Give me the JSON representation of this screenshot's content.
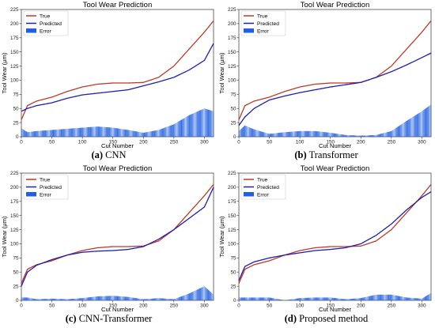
{
  "figure": {
    "panels": [
      {
        "letter": "(a)",
        "label": "CNN"
      },
      {
        "letter": "(b)",
        "label": "Transformer"
      },
      {
        "letter": "(c)",
        "label": "CNN-Transformer"
      },
      {
        "letter": "(d)",
        "label": "Proposed method"
      }
    ]
  },
  "chart_data": [
    {
      "type": "line",
      "title": "Tool Wear Prediction",
      "xlabel": "Cut Number",
      "ylabel": "Tool Wear (μm)",
      "xlim": [
        0,
        315
      ],
      "ylim": [
        0,
        225
      ],
      "xticks": [
        0,
        50,
        100,
        150,
        200,
        250,
        300
      ],
      "yticks": [
        0,
        25,
        50,
        75,
        100,
        125,
        150,
        175,
        200,
        225
      ],
      "legend": {
        "position": "top-left",
        "entries": [
          "True",
          "Predicted",
          "Error"
        ]
      },
      "series": [
        {
          "name": "True",
          "color": "#c0392b",
          "x": [
            0,
            10,
            25,
            50,
            75,
            100,
            125,
            150,
            175,
            200,
            225,
            250,
            275,
            300,
            315
          ],
          "y": [
            30,
            55,
            63,
            70,
            80,
            88,
            93,
            95,
            95,
            96,
            105,
            125,
            155,
            185,
            205
          ]
        },
        {
          "name": "Predicted",
          "color": "#1f1fb4",
          "x": [
            0,
            10,
            25,
            50,
            75,
            100,
            125,
            150,
            175,
            200,
            225,
            250,
            275,
            300,
            315
          ],
          "y": [
            45,
            50,
            55,
            60,
            68,
            74,
            77,
            80,
            83,
            90,
            97,
            105,
            118,
            135,
            165
          ]
        },
        {
          "name": "Error",
          "color": "#1f5fe0",
          "x": [
            0,
            10,
            25,
            50,
            75,
            100,
            125,
            150,
            175,
            200,
            225,
            250,
            275,
            300,
            315
          ],
          "y": [
            15,
            8,
            10,
            12,
            14,
            16,
            18,
            16,
            12,
            7,
            12,
            22,
            38,
            50,
            45
          ]
        }
      ]
    },
    {
      "type": "line",
      "title": "Tool Wear Prediction",
      "xlabel": "Cut Number",
      "ylabel": "Tool Wear (μm)",
      "xlim": [
        0,
        315
      ],
      "ylim": [
        0,
        225
      ],
      "xticks": [
        0,
        50,
        100,
        150,
        200,
        250,
        300
      ],
      "yticks": [
        0,
        25,
        50,
        75,
        100,
        125,
        150,
        175,
        200,
        225
      ],
      "legend": {
        "position": "top-left",
        "entries": [
          "True",
          "Predicted",
          "Error"
        ]
      },
      "series": [
        {
          "name": "True",
          "color": "#c0392b",
          "x": [
            0,
            10,
            25,
            50,
            75,
            100,
            125,
            150,
            175,
            200,
            225,
            250,
            275,
            300,
            315
          ],
          "y": [
            30,
            55,
            63,
            70,
            80,
            88,
            93,
            95,
            95,
            96,
            105,
            125,
            155,
            185,
            205
          ]
        },
        {
          "name": "Predicted",
          "color": "#1f1fb4",
          "x": [
            0,
            10,
            25,
            50,
            75,
            100,
            125,
            150,
            175,
            200,
            225,
            250,
            275,
            300,
            315
          ],
          "y": [
            20,
            35,
            50,
            65,
            72,
            78,
            83,
            88,
            92,
            96,
            105,
            115,
            127,
            140,
            148
          ]
        },
        {
          "name": "Error",
          "color": "#1f5fe0",
          "x": [
            0,
            10,
            25,
            50,
            75,
            100,
            125,
            150,
            175,
            200,
            225,
            250,
            275,
            300,
            315
          ],
          "y": [
            10,
            20,
            13,
            5,
            8,
            10,
            10,
            7,
            3,
            2,
            3,
            10,
            28,
            45,
            57
          ]
        }
      ]
    },
    {
      "type": "line",
      "title": "Tool Wear Prediction",
      "xlabel": "Cut Number",
      "ylabel": "Tool Wear (μm)",
      "xlim": [
        0,
        315
      ],
      "ylim": [
        0,
        225
      ],
      "xticks": [
        0,
        50,
        100,
        150,
        200,
        250,
        300
      ],
      "yticks": [
        0,
        25,
        50,
        75,
        100,
        125,
        150,
        175,
        200,
        225
      ],
      "legend": {
        "position": "top-left",
        "entries": [
          "True",
          "Predicted",
          "Error"
        ]
      },
      "series": [
        {
          "name": "True",
          "color": "#c0392b",
          "x": [
            0,
            10,
            25,
            50,
            75,
            100,
            125,
            150,
            175,
            200,
            225,
            250,
            275,
            300,
            315
          ],
          "y": [
            30,
            55,
            63,
            70,
            80,
            88,
            93,
            95,
            95,
            96,
            105,
            125,
            155,
            185,
            205
          ]
        },
        {
          "name": "Predicted",
          "color": "#1f1fb4",
          "x": [
            0,
            10,
            25,
            50,
            75,
            100,
            125,
            150,
            175,
            200,
            225,
            250,
            275,
            300,
            315
          ],
          "y": [
            25,
            50,
            62,
            72,
            80,
            85,
            87,
            88,
            90,
            95,
            108,
            125,
            145,
            165,
            200
          ]
        },
        {
          "name": "Error",
          "color": "#1f5fe0",
          "x": [
            0,
            10,
            25,
            50,
            75,
            100,
            125,
            150,
            175,
            200,
            225,
            250,
            275,
            300,
            315
          ],
          "y": [
            5,
            5,
            2,
            3,
            2,
            4,
            7,
            8,
            6,
            2,
            4,
            2,
            12,
            25,
            10
          ]
        }
      ]
    },
    {
      "type": "line",
      "title": "Tool Wear Prediction",
      "xlabel": "Cut Number",
      "ylabel": "Tool Wear (μm)",
      "xlim": [
        0,
        315
      ],
      "ylim": [
        0,
        225
      ],
      "xticks": [
        0,
        50,
        100,
        150,
        200,
        250,
        300
      ],
      "yticks": [
        0,
        25,
        50,
        75,
        100,
        125,
        150,
        175,
        200,
        225
      ],
      "legend": {
        "position": "top-left",
        "entries": [
          "True",
          "Predicted",
          "Error"
        ]
      },
      "series": [
        {
          "name": "True",
          "color": "#c0392b",
          "x": [
            0,
            10,
            25,
            50,
            75,
            100,
            125,
            150,
            175,
            200,
            225,
            250,
            275,
            300,
            315
          ],
          "y": [
            30,
            55,
            63,
            70,
            80,
            88,
            93,
            95,
            95,
            96,
            105,
            125,
            155,
            185,
            205
          ]
        },
        {
          "name": "Predicted",
          "color": "#1f1fb4",
          "x": [
            0,
            10,
            25,
            50,
            75,
            100,
            125,
            150,
            175,
            200,
            225,
            250,
            275,
            300,
            315
          ],
          "y": [
            35,
            60,
            68,
            75,
            80,
            84,
            88,
            90,
            93,
            100,
            115,
            135,
            160,
            182,
            192
          ]
        },
        {
          "name": "Error",
          "color": "#1f5fe0",
          "x": [
            0,
            10,
            25,
            50,
            75,
            100,
            125,
            150,
            175,
            200,
            225,
            250,
            275,
            300,
            315
          ],
          "y": [
            5,
            5,
            5,
            5,
            0,
            4,
            5,
            5,
            2,
            4,
            10,
            10,
            5,
            3,
            13
          ]
        }
      ]
    }
  ]
}
